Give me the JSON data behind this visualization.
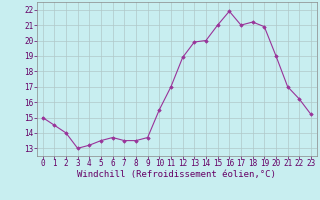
{
  "x": [
    0,
    1,
    2,
    3,
    4,
    5,
    6,
    7,
    8,
    9,
    10,
    11,
    12,
    13,
    14,
    15,
    16,
    17,
    18,
    19,
    20,
    21,
    22,
    23
  ],
  "y": [
    15.0,
    14.5,
    14.0,
    13.0,
    13.2,
    13.5,
    13.7,
    13.5,
    13.5,
    13.7,
    15.5,
    17.0,
    18.9,
    19.9,
    20.0,
    21.0,
    21.9,
    21.0,
    21.2,
    20.9,
    19.0,
    17.0,
    16.2,
    15.2
  ],
  "xlim": [
    -0.5,
    23.5
  ],
  "ylim": [
    12.5,
    22.5
  ],
  "yticks": [
    13,
    14,
    15,
    16,
    17,
    18,
    19,
    20,
    21,
    22
  ],
  "xticks": [
    0,
    1,
    2,
    3,
    4,
    5,
    6,
    7,
    8,
    9,
    10,
    11,
    12,
    13,
    14,
    15,
    16,
    17,
    18,
    19,
    20,
    21,
    22,
    23
  ],
  "xlabel": "Windchill (Refroidissement éolien,°C)",
  "line_color": "#993399",
  "marker": "D",
  "marker_size": 1.8,
  "bg_color": "#c8eef0",
  "grid_color": "#b0c8c8",
  "tick_label_color": "#660066",
  "axis_label_color": "#660066",
  "font_size_tick": 5.5,
  "font_size_label": 6.5,
  "linewidth": 0.8
}
